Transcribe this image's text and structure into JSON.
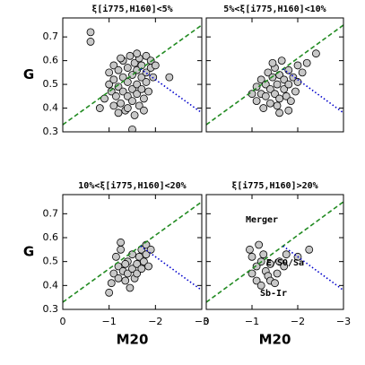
{
  "chart_data": [
    {
      "type": "scatter",
      "title": "ξ[i775,H160]<5%",
      "ylabel": "G",
      "x": [
        -0.6,
        -0.6,
        -0.8,
        -0.9,
        -1.0,
        -1.0,
        -1.05,
        -1.1,
        -1.1,
        -1.15,
        -1.2,
        -1.2,
        -1.25,
        -1.3,
        -1.3,
        -1.3,
        -1.35,
        -1.4,
        -1.4,
        -1.4,
        -1.45,
        -1.5,
        -1.5,
        -1.5,
        -1.5,
        -1.55,
        -1.6,
        -1.6,
        -1.6,
        -1.65,
        -1.65,
        -1.7,
        -1.7,
        -1.7,
        -1.75,
        -1.8,
        -1.8,
        -1.8,
        -1.85,
        -1.9,
        -1.9,
        -1.95,
        -2.0,
        -1.2,
        -1.4,
        -1.55,
        -1.1,
        -1.75,
        -2.3,
        -1.25,
        -1.6
      ],
      "values": [
        0.72,
        0.68,
        0.4,
        0.44,
        0.5,
        0.55,
        0.47,
        0.58,
        0.52,
        0.45,
        0.49,
        0.56,
        0.42,
        0.53,
        0.47,
        0.6,
        0.39,
        0.51,
        0.45,
        0.57,
        0.62,
        0.48,
        0.54,
        0.43,
        0.31,
        0.59,
        0.5,
        0.46,
        0.56,
        0.61,
        0.41,
        0.53,
        0.48,
        0.58,
        0.44,
        0.55,
        0.51,
        0.62,
        0.47,
        0.57,
        0.6,
        0.53,
        0.58,
        0.38,
        0.4,
        0.37,
        0.41,
        0.39,
        0.53,
        0.61,
        0.63
      ],
      "color": "#c8c8c8",
      "xlim": [
        0,
        -3
      ],
      "ylim": [
        0.3,
        0.78
      ],
      "xticks": [
        0,
        {
          "value": -1,
          "label": "−1"
        },
        {
          "value": -2,
          "label": "−2"
        },
        {
          "value": -3,
          "label": "−3"
        }
      ],
      "yticks": [
        0.3,
        0.4,
        0.5,
        0.6,
        0.7
      ],
      "lines": [
        {
          "color": "#228b22",
          "style": "dashed",
          "x": [
            0,
            -3
          ],
          "y": [
            0.33,
            0.75
          ]
        },
        {
          "color": "#0000cc",
          "style": "dotted",
          "x": [
            -1.68,
            -3
          ],
          "y": [
            0.565,
            0.38
          ]
        }
      ]
    },
    {
      "type": "scatter",
      "title": "5%<ξ[i775,H160]<10%",
      "x": [
        -1.0,
        -1.1,
        -1.1,
        -1.2,
        -1.2,
        -1.3,
        -1.3,
        -1.35,
        -1.4,
        -1.4,
        -1.45,
        -1.5,
        -1.5,
        -1.55,
        -1.55,
        -1.6,
        -1.6,
        -1.65,
        -1.7,
        -1.7,
        -1.75,
        -1.8,
        -1.8,
        -1.85,
        -1.9,
        -1.95,
        -2.0,
        -2.0,
        -2.1,
        -1.6,
        -1.8,
        -2.2,
        -2.4,
        -1.25,
        -1.45
      ],
      "values": [
        0.46,
        0.49,
        0.43,
        0.46,
        0.52,
        0.5,
        0.45,
        0.55,
        0.48,
        0.42,
        0.53,
        0.57,
        0.46,
        0.5,
        0.41,
        0.54,
        0.44,
        0.6,
        0.48,
        0.52,
        0.45,
        0.56,
        0.5,
        0.43,
        0.53,
        0.47,
        0.58,
        0.51,
        0.55,
        0.38,
        0.39,
        0.59,
        0.63,
        0.4,
        0.59
      ],
      "color": "#c8c8c8",
      "xlim": [
        0,
        -3
      ],
      "ylim": [
        0.3,
        0.78
      ],
      "xticks": [
        0,
        {
          "value": -1,
          "label": "−1"
        },
        {
          "value": -2,
          "label": "−2"
        },
        {
          "value": -3,
          "label": "−3"
        }
      ],
      "yticks": [
        0.3,
        0.4,
        0.5,
        0.6,
        0.7
      ],
      "lines": [
        {
          "color": "#228b22",
          "style": "dashed",
          "x": [
            0,
            -3
          ],
          "y": [
            0.33,
            0.75
          ]
        },
        {
          "color": "#0000cc",
          "style": "dotted",
          "x": [
            -1.68,
            -3
          ],
          "y": [
            0.565,
            0.38
          ]
        }
      ]
    },
    {
      "type": "scatter",
      "title": "10%<ξ[i775,H160]<20%",
      "ylabel": "G",
      "xlabel": "M20",
      "x": [
        -1.0,
        -1.05,
        -1.1,
        -1.2,
        -1.2,
        -1.25,
        -1.25,
        -1.3,
        -1.35,
        -1.4,
        -1.4,
        -1.45,
        -1.5,
        -1.5,
        -1.55,
        -1.6,
        -1.6,
        -1.65,
        -1.7,
        -1.7,
        -1.75,
        -1.8,
        -1.8,
        -1.85,
        -1.9,
        -1.35,
        -1.15
      ],
      "values": [
        0.37,
        0.41,
        0.45,
        0.48,
        0.43,
        0.55,
        0.58,
        0.46,
        0.42,
        0.5,
        0.45,
        0.39,
        0.47,
        0.53,
        0.43,
        0.49,
        0.45,
        0.52,
        0.47,
        0.55,
        0.5,
        0.53,
        0.57,
        0.48,
        0.55,
        0.49,
        0.52
      ],
      "color": "#c8c8c8",
      "xlim": [
        0,
        -3
      ],
      "ylim": [
        0.3,
        0.78
      ],
      "xticks": [
        0,
        {
          "value": -1,
          "label": "−1"
        },
        {
          "value": -2,
          "label": "−2"
        },
        {
          "value": -3,
          "label": "−3"
        }
      ],
      "yticks": [
        0.3,
        0.4,
        0.5,
        0.6,
        0.7
      ],
      "lines": [
        {
          "color": "#228b22",
          "style": "dashed",
          "x": [
            0,
            -3
          ],
          "y": [
            0.33,
            0.75
          ]
        },
        {
          "color": "#0000cc",
          "style": "dotted",
          "x": [
            -1.68,
            -3
          ],
          "y": [
            0.565,
            0.38
          ]
        }
      ]
    },
    {
      "type": "scatter",
      "title": "ξ[i775,H160]>20%",
      "xlabel": "M20",
      "annotations": [
        "Merger",
        "E/S0/Sa",
        "Sb-Ir"
      ],
      "x": [
        -0.95,
        -1.0,
        -1.0,
        -1.1,
        -1.1,
        -1.15,
        -1.2,
        -1.25,
        -1.3,
        -1.35,
        -1.4,
        -1.4,
        -1.5,
        -1.55,
        -1.6,
        -1.7,
        -1.75,
        -2.0,
        -2.25,
        -1.2
      ],
      "values": [
        0.55,
        0.52,
        0.45,
        0.48,
        0.42,
        0.57,
        0.5,
        0.53,
        0.46,
        0.44,
        0.42,
        0.49,
        0.41,
        0.45,
        0.5,
        0.48,
        0.53,
        0.52,
        0.55,
        0.4
      ],
      "color": "#c8c8c8",
      "xlim": [
        0,
        -3
      ],
      "ylim": [
        0.3,
        0.78
      ],
      "xticks": [
        0,
        {
          "value": -1,
          "label": "−1"
        },
        {
          "value": -2,
          "label": "−2"
        },
        {
          "value": -3,
          "label": "−3"
        }
      ],
      "yticks": [
        0.3,
        0.4,
        0.5,
        0.6,
        0.7
      ],
      "lines": [
        {
          "color": "#228b22",
          "style": "dashed",
          "x": [
            0,
            -3
          ],
          "y": [
            0.33,
            0.75
          ]
        },
        {
          "color": "#0000cc",
          "style": "dotted",
          "x": [
            -1.68,
            -3
          ],
          "y": [
            0.565,
            0.38
          ]
        }
      ]
    }
  ]
}
